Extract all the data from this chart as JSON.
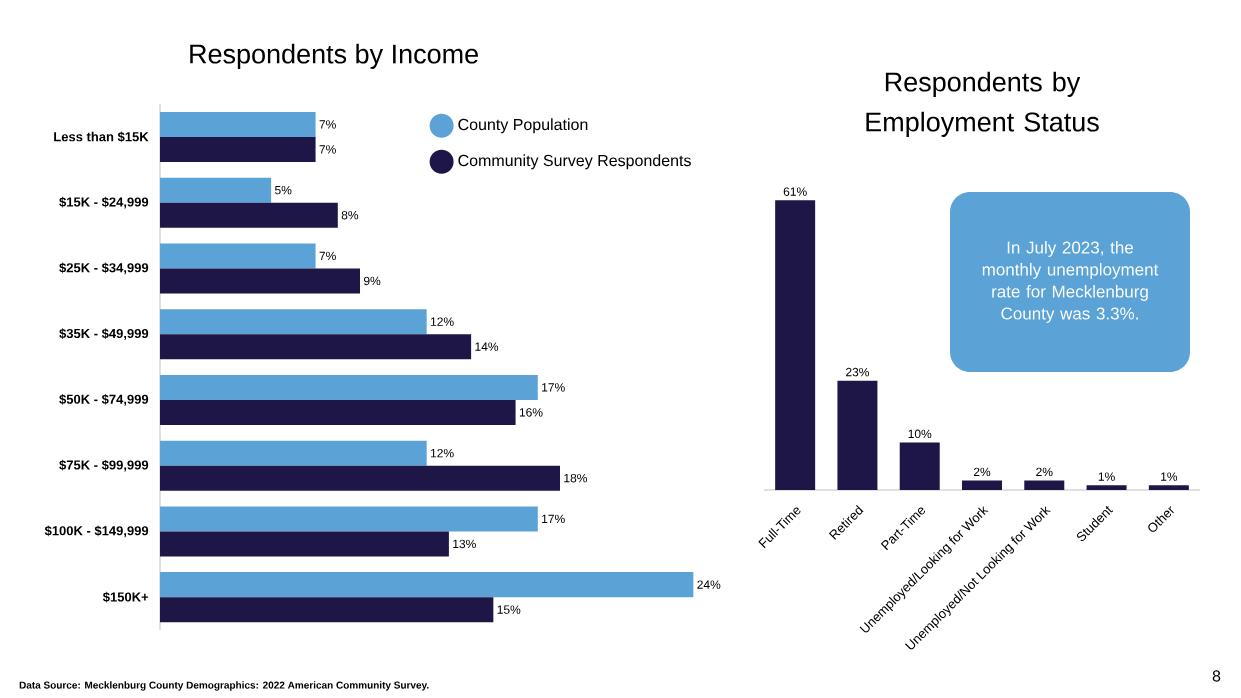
{
  "chart_data": [
    {
      "type": "bar",
      "orientation": "horizontal",
      "title": "Respondents by Income",
      "categories": [
        "Less than $15K",
        "$15K - $24,999",
        "$25K - $34,999",
        "$35K - $49,999",
        "$50K - $74,999",
        "$75K - $99,999",
        "$100K - $149,999",
        "$150K+"
      ],
      "series": [
        {
          "name": "County Population",
          "color": "#5ba3d6",
          "values": [
            7,
            5,
            7,
            12,
            17,
            12,
            17,
            24
          ],
          "value_labels": [
            "7%",
            "5%",
            "7%",
            "12%",
            "17%",
            "12%",
            "17%",
            "24%"
          ]
        },
        {
          "name": "Community Survey Respondents",
          "color": "#1e1646",
          "values": [
            7,
            8,
            9,
            14,
            16,
            18,
            13,
            15
          ],
          "value_labels": [
            "7%",
            "8%",
            "9%",
            "14%",
            "16%",
            "18%",
            "13%",
            "15%"
          ]
        }
      ],
      "legend": "top right",
      "annotations": [
        "Data Source: Mecklenburg County Demographics: 2022 American Community Survey."
      ]
    },
    {
      "type": "bar",
      "title": "Respondents by Employment Status",
      "categories": [
        "Full-Time",
        "Retired",
        "Part-Time",
        "Unemployed/Looking for Work",
        "Unemployed/Not Looking for Work",
        "Student",
        "Other"
      ],
      "values": [
        61,
        23,
        10,
        2,
        2,
        1,
        1
      ],
      "value_labels": [
        "61%",
        "23%",
        "10%",
        "2%",
        "2%",
        "1%",
        "1%"
      ],
      "color": "#1e1646",
      "legend": false,
      "annotations": [
        "In July 2023, the monthly unemployment rate for Mecklenburg County was 3.3%.",
        "8"
      ]
    }
  ]
}
